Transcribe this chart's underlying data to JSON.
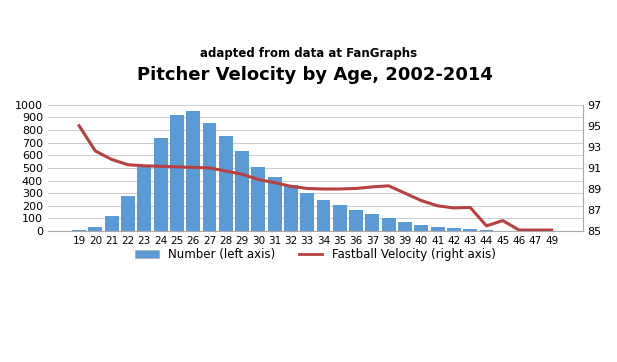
{
  "title": "Pitcher Velocity by Age, 2002-2014",
  "subtitle": "adapted from data at FanGraphs",
  "ages": [
    19,
    20,
    21,
    22,
    23,
    24,
    25,
    26,
    27,
    28,
    29,
    30,
    31,
    32,
    33,
    34,
    35,
    36,
    37,
    38,
    39,
    40,
    41,
    42,
    43,
    44,
    45,
    46,
    47,
    49
  ],
  "counts": [
    10,
    30,
    120,
    280,
    505,
    735,
    920,
    950,
    855,
    755,
    635,
    510,
    430,
    365,
    305,
    250,
    210,
    165,
    135,
    100,
    70,
    48,
    35,
    25,
    15,
    5,
    3,
    3,
    3,
    3
  ],
  "velocities": [
    95.0,
    92.6,
    91.8,
    91.3,
    91.2,
    91.15,
    91.1,
    91.05,
    91.0,
    90.7,
    90.4,
    89.9,
    89.6,
    89.25,
    89.05,
    89.0,
    89.0,
    89.05,
    89.2,
    89.3,
    88.6,
    87.9,
    87.4,
    87.2,
    87.25,
    85.5,
    86.0,
    85.1,
    85.1,
    85.1
  ],
  "bar_color": "#5b9bd5",
  "line_color": "#b94040",
  "left_ylim": [
    0,
    1000
  ],
  "right_ylim": [
    85.0,
    97.0
  ],
  "left_yticks": [
    0,
    100,
    200,
    300,
    400,
    500,
    600,
    700,
    800,
    900,
    1000
  ],
  "right_yticks": [
    85.0,
    87.0,
    89.0,
    91.0,
    93.0,
    95.0,
    97.0
  ],
  "legend_bar_label": "Number (left axis)",
  "legend_line_label": "Fastball Velocity (right axis)",
  "bg_color": "#ffffff"
}
